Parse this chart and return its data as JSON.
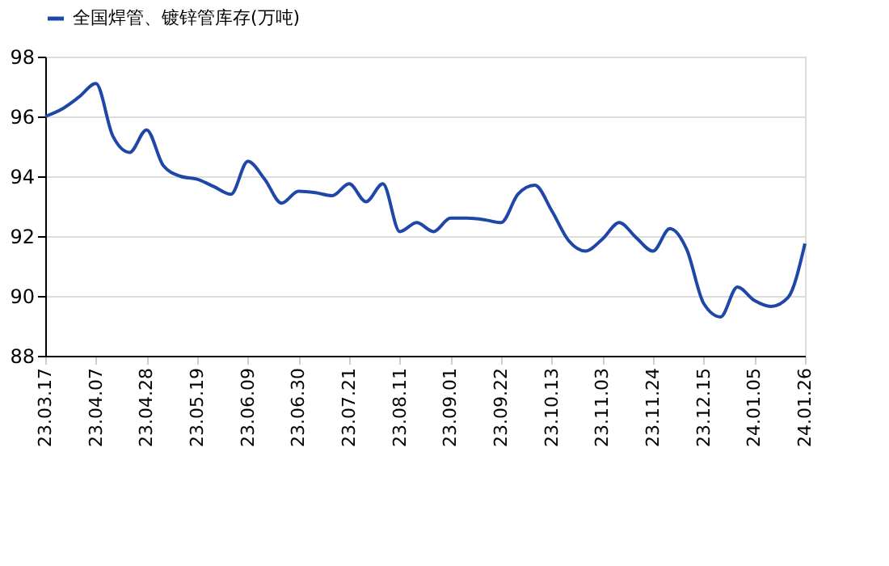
{
  "chart_data": {
    "type": "line",
    "categories": [
      "23.03.17",
      null,
      null,
      "23.04.07",
      null,
      null,
      "23.04.28",
      null,
      null,
      "23.05.19",
      null,
      null,
      "23.06.09",
      null,
      null,
      "23.06.30",
      null,
      null,
      "23.07.21",
      null,
      null,
      "23.08.11",
      null,
      null,
      "23.09.01",
      null,
      null,
      "23.09.22",
      null,
      null,
      "23.10.13",
      null,
      null,
      "23.11.03",
      null,
      null,
      "23.11.24",
      null,
      null,
      "23.12.15",
      null,
      null,
      "24.01.05",
      null,
      null,
      "24.01.26"
    ],
    "series": [
      {
        "name": "全国焊管、镀锌管库存(万吨)",
        "color": "#1f47a8",
        "values": [
          96.0,
          96.25,
          96.65,
          97.1,
          95.35,
          94.8,
          95.55,
          94.35,
          94.0,
          93.9,
          93.65,
          93.4,
          94.5,
          93.9,
          93.1,
          93.5,
          93.45,
          93.35,
          93.75,
          93.15,
          93.75,
          92.15,
          92.45,
          92.15,
          92.6,
          92.6,
          92.55,
          92.45,
          93.4,
          93.7,
          92.85,
          91.85,
          91.5,
          91.9,
          92.45,
          91.95,
          91.5,
          92.25,
          91.55,
          89.75,
          89.3,
          90.3,
          89.85,
          89.65,
          89.95,
          91.75
        ]
      }
    ],
    "ylim": [
      88,
      98
    ],
    "yticks": [
      88,
      90,
      92,
      94,
      96,
      98
    ],
    "grid": "y",
    "legend": "top",
    "marker": "none",
    "line_style": "solid"
  }
}
